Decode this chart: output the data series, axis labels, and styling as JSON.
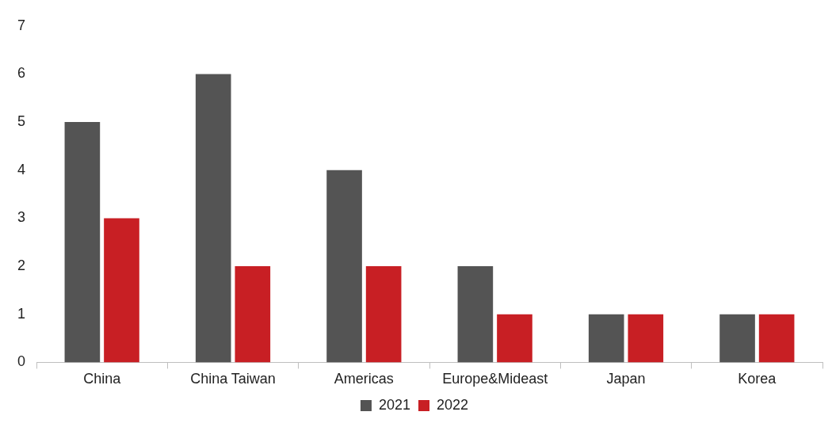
{
  "chart_data": {
    "type": "bar",
    "categories": [
      "China",
      "China Taiwan",
      "Americas",
      "Europe&Mideast",
      "Japan",
      "Korea"
    ],
    "series": [
      {
        "name": "2021",
        "color": "#545454",
        "values": [
          5,
          6,
          4,
          2,
          1,
          1
        ]
      },
      {
        "name": "2022",
        "color": "#c81f24",
        "values": [
          3,
          2,
          2,
          1,
          1,
          1
        ]
      }
    ],
    "ylim": [
      0,
      7
    ],
    "yticks": [
      0,
      1,
      2,
      3,
      4,
      5,
      6,
      7
    ],
    "grid": false,
    "legend": "bottom"
  }
}
